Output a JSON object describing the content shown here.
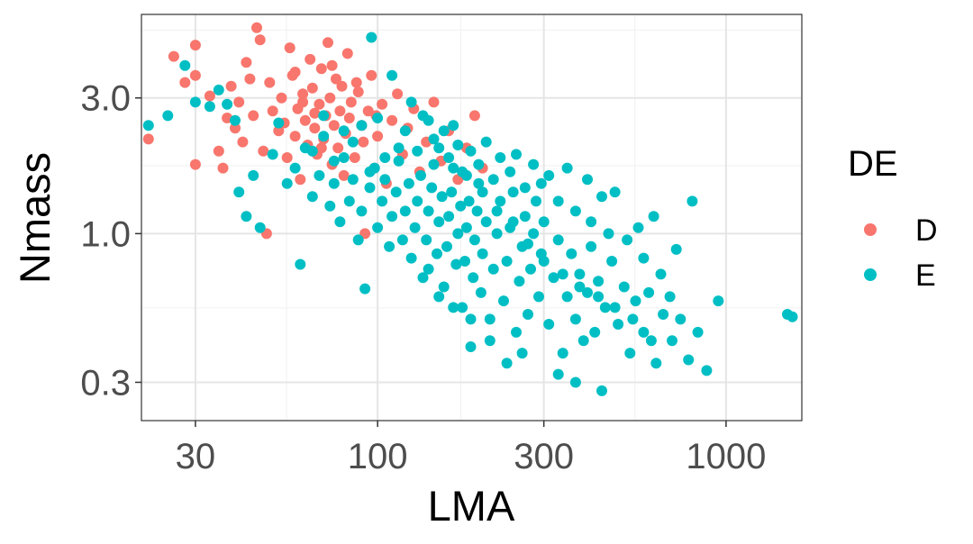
{
  "chart_data": {
    "type": "scatter",
    "title": "",
    "xlabel": "LMA",
    "ylabel": "Nmass",
    "x_scale": "log10",
    "y_scale": "log10",
    "xlim": [
      21,
      1650
    ],
    "ylim": [
      0.22,
      5.9
    ],
    "x_ticks": [
      30,
      100,
      300,
      1000
    ],
    "x_tick_labels": [
      "30",
      "100",
      "300",
      "1000"
    ],
    "y_ticks": [
      0.3,
      1.0,
      3.0
    ],
    "y_tick_labels": [
      "0.3",
      "1.0",
      "3.0"
    ],
    "grid": true,
    "legend": {
      "title": "DE",
      "position": "right",
      "entries": [
        {
          "label": "D",
          "color": "#F8766D"
        },
        {
          "label": "E",
          "color": "#00BFC4"
        }
      ]
    },
    "series": [
      {
        "name": "D",
        "color": "#F8766D",
        "points": [
          [
            22,
            2.15
          ],
          [
            26,
            4.2
          ],
          [
            28,
            3.4
          ],
          [
            30,
            3.6
          ],
          [
            30,
            4.6
          ],
          [
            30,
            1.75
          ],
          [
            33,
            3.05
          ],
          [
            35,
            1.95
          ],
          [
            36,
            1.7
          ],
          [
            37,
            2.55
          ],
          [
            38,
            3.3
          ],
          [
            39,
            2.35
          ],
          [
            40,
            2.9
          ],
          [
            41,
            2.1
          ],
          [
            42,
            4.0
          ],
          [
            43,
            3.5
          ],
          [
            44,
            2.6
          ],
          [
            45,
            5.3
          ],
          [
            46,
            4.8
          ],
          [
            47,
            1.95
          ],
          [
            48,
            1.0
          ],
          [
            49,
            3.4
          ],
          [
            50,
            2.7
          ],
          [
            52,
            2.3
          ],
          [
            53,
            3.0
          ],
          [
            54,
            2.45
          ],
          [
            55,
            1.85
          ],
          [
            56,
            4.5
          ],
          [
            57,
            3.6
          ],
          [
            58,
            2.2
          ],
          [
            59,
            2.75
          ],
          [
            60,
            1.55
          ],
          [
            61,
            3.1
          ],
          [
            62,
            2.5
          ],
          [
            63,
            2.05
          ],
          [
            64,
            4.1
          ],
          [
            65,
            3.25
          ],
          [
            66,
            2.35
          ],
          [
            67,
            1.9
          ],
          [
            68,
            2.85
          ],
          [
            69,
            3.8
          ],
          [
            70,
            2.15
          ],
          [
            71,
            2.6
          ],
          [
            72,
            4.7
          ],
          [
            73,
            3.0
          ],
          [
            74,
            1.75
          ],
          [
            75,
            2.4
          ],
          [
            76,
            3.5
          ],
          [
            77,
            2.0
          ],
          [
            78,
            2.7
          ],
          [
            79,
            3.3
          ],
          [
            80,
            1.6
          ],
          [
            81,
            2.25
          ],
          [
            82,
            4.3
          ],
          [
            84,
            2.9
          ],
          [
            86,
            1.85
          ],
          [
            88,
            3.15
          ],
          [
            90,
            2.4
          ],
          [
            92,
            1.0
          ],
          [
            94,
            2.7
          ],
          [
            96,
            3.6
          ],
          [
            98,
            1.7
          ],
          [
            100,
            2.2
          ],
          [
            103,
            2.85
          ],
          [
            106,
            1.5
          ],
          [
            110,
            2.5
          ],
          [
            114,
            3.1
          ],
          [
            118,
            1.9
          ],
          [
            122,
            2.35
          ],
          [
            127,
            2.75
          ],
          [
            132,
            1.65
          ],
          [
            138,
            2.1
          ],
          [
            145,
            2.9
          ],
          [
            152,
            1.8
          ],
          [
            160,
            2.3
          ],
          [
            170,
            1.55
          ],
          [
            180,
            2.0
          ],
          [
            190,
            2.6
          ],
          [
            200,
            1.7
          ],
          [
            58,
            3.7
          ],
          [
            61,
            2.9
          ],
          [
            66,
            2.65
          ],
          [
            69,
            2.0
          ],
          [
            74,
            3.9
          ],
          [
            83,
            2.55
          ],
          [
            87,
            3.4
          ],
          [
            91,
            2.1
          ],
          [
            99,
            2.6
          ]
        ]
      },
      {
        "name": "E",
        "color": "#00BFC4",
        "points": [
          [
            22,
            2.4
          ],
          [
            25,
            2.6
          ],
          [
            28,
            3.9
          ],
          [
            30,
            2.9
          ],
          [
            33,
            2.8
          ],
          [
            35,
            3.2
          ],
          [
            37,
            2.85
          ],
          [
            39,
            2.5
          ],
          [
            40,
            1.4
          ],
          [
            42,
            1.15
          ],
          [
            44,
            1.6
          ],
          [
            46,
            1.05
          ],
          [
            50,
            1.9
          ],
          [
            52,
            2.45
          ],
          [
            55,
            1.5
          ],
          [
            58,
            1.7
          ],
          [
            60,
            0.78
          ],
          [
            62,
            2.0
          ],
          [
            65,
            1.35
          ],
          [
            68,
            1.6
          ],
          [
            70,
            2.2
          ],
          [
            73,
            1.25
          ],
          [
            75,
            1.5
          ],
          [
            78,
            1.1
          ],
          [
            80,
            1.85
          ],
          [
            83,
            1.3
          ],
          [
            85,
            1.55
          ],
          [
            88,
            0.95
          ],
          [
            90,
            1.2
          ],
          [
            92,
            0.64
          ],
          [
            95,
            1.45
          ],
          [
            98,
            1.7
          ],
          [
            100,
            1.05
          ],
          [
            103,
            1.3
          ],
          [
            105,
            1.55
          ],
          [
            108,
            0.9
          ],
          [
            110,
            1.15
          ],
          [
            113,
            1.4
          ],
          [
            115,
            1.8
          ],
          [
            118,
            0.95
          ],
          [
            120,
            1.2
          ],
          [
            123,
            1.5
          ],
          [
            125,
            0.82
          ],
          [
            128,
            1.05
          ],
          [
            130,
            1.3
          ],
          [
            133,
            1.6
          ],
          [
            135,
            0.7
          ],
          [
            138,
            0.95
          ],
          [
            140,
            1.2
          ],
          [
            143,
            1.45
          ],
          [
            145,
            1.75
          ],
          [
            148,
            0.85
          ],
          [
            150,
            1.1
          ],
          [
            153,
            1.35
          ],
          [
            155,
            0.65
          ],
          [
            158,
            0.9
          ],
          [
            160,
            1.15
          ],
          [
            163,
            1.4
          ],
          [
            165,
            1.7
          ],
          [
            168,
            0.78
          ],
          [
            170,
            1.0
          ],
          [
            173,
            1.25
          ],
          [
            175,
            0.55
          ],
          [
            178,
            0.8
          ],
          [
            180,
            1.05
          ],
          [
            183,
            1.3
          ],
          [
            185,
            0.4
          ],
          [
            188,
            0.7
          ],
          [
            190,
            0.95
          ],
          [
            193,
            1.2
          ],
          [
            195,
            1.5
          ],
          [
            198,
            0.62
          ],
          [
            200,
            0.85
          ],
          [
            205,
            1.1
          ],
          [
            210,
            0.5
          ],
          [
            215,
            0.75
          ],
          [
            220,
            1.0
          ],
          [
            225,
            1.3
          ],
          [
            230,
            0.58
          ],
          [
            235,
            0.8
          ],
          [
            240,
            1.05
          ],
          [
            245,
            1.4
          ],
          [
            250,
            0.45
          ],
          [
            255,
            0.68
          ],
          [
            260,
            0.9
          ],
          [
            265,
            1.15
          ],
          [
            270,
            0.52
          ],
          [
            275,
            0.75
          ],
          [
            280,
            1.0
          ],
          [
            285,
            1.3
          ],
          [
            290,
            0.6
          ],
          [
            295,
            0.85
          ],
          [
            300,
            1.1
          ],
          [
            310,
            0.48
          ],
          [
            320,
            0.7
          ],
          [
            330,
            0.95
          ],
          [
            340,
            0.38
          ],
          [
            350,
            0.6
          ],
          [
            360,
            0.85
          ],
          [
            370,
            0.5
          ],
          [
            380,
            0.72
          ],
          [
            390,
            0.42
          ],
          [
            400,
            0.62
          ],
          [
            410,
            0.9
          ],
          [
            420,
            0.45
          ],
          [
            430,
            0.68
          ],
          [
            440,
            0.28
          ],
          [
            450,
            0.55
          ],
          [
            470,
            0.8
          ],
          [
            490,
            0.48
          ],
          [
            510,
            0.65
          ],
          [
            530,
            0.38
          ],
          [
            550,
            0.58
          ],
          [
            580,
            0.45
          ],
          [
            600,
            0.62
          ],
          [
            630,
            0.35
          ],
          [
            660,
            0.52
          ],
          [
            700,
            0.42
          ],
          [
            740,
            0.5
          ],
          [
            780,
            0.36
          ],
          [
            830,
            0.45
          ],
          [
            880,
            0.33
          ],
          [
            950,
            0.58
          ],
          [
            1500,
            0.52
          ],
          [
            1550,
            0.51
          ],
          [
            96,
            4.9
          ],
          [
            110,
            3.6
          ],
          [
            125,
            2.9
          ],
          [
            140,
            2.5
          ],
          [
            155,
            2.3
          ],
          [
            170,
            2.05
          ],
          [
            185,
            1.95
          ],
          [
            205,
            2.1
          ],
          [
            225,
            1.85
          ],
          [
            250,
            1.9
          ],
          [
            280,
            1.75
          ],
          [
            310,
            1.6
          ],
          [
            350,
            1.7
          ],
          [
            400,
            1.55
          ],
          [
            440,
            1.35
          ],
          [
            480,
            1.4
          ],
          [
            560,
            1.05
          ],
          [
            620,
            1.15
          ],
          [
            720,
            0.88
          ],
          [
            800,
            1.3
          ],
          [
            160,
            1.85
          ],
          [
            175,
            1.65
          ],
          [
            195,
            1.75
          ],
          [
            215,
            1.55
          ],
          [
            240,
            1.65
          ],
          [
            265,
            1.45
          ],
          [
            295,
            1.5
          ],
          [
            330,
            1.3
          ],
          [
            370,
            1.2
          ],
          [
            410,
            1.1
          ],
          [
            460,
            1.0
          ],
          [
            520,
            0.95
          ],
          [
            580,
            0.82
          ],
          [
            650,
            0.72
          ],
          [
            690,
            0.6
          ],
          [
            130,
            1.95
          ],
          [
            145,
            2.15
          ],
          [
            115,
            2.0
          ],
          [
            105,
            1.85
          ],
          [
            95,
            1.65
          ],
          [
            85,
            2.1
          ],
          [
            75,
            1.8
          ],
          [
            65,
            1.95
          ],
          [
            70,
            2.6
          ],
          [
            80,
            2.3
          ],
          [
            90,
            2.4
          ],
          [
            100,
            2.55
          ],
          [
            120,
            2.3
          ],
          [
            135,
            2.6
          ],
          [
            150,
            2.0
          ],
          [
            165,
            2.4
          ],
          [
            180,
            1.6
          ],
          [
            200,
            1.4
          ],
          [
            220,
            1.2
          ],
          [
            245,
            1.1
          ],
          [
            270,
            0.92
          ],
          [
            300,
            0.8
          ],
          [
            340,
            0.72
          ],
          [
            380,
            0.65
          ],
          [
            430,
            0.6
          ],
          [
            480,
            0.55
          ],
          [
            540,
            0.5
          ],
          [
            610,
            0.42
          ],
          [
            140,
            0.75
          ],
          [
            150,
            0.6
          ],
          [
            165,
            0.55
          ],
          [
            185,
            0.5
          ],
          [
            210,
            0.42
          ],
          [
            235,
            0.35
          ],
          [
            260,
            0.38
          ],
          [
            330,
            0.32
          ],
          [
            370,
            0.3
          ]
        ]
      }
    ]
  }
}
